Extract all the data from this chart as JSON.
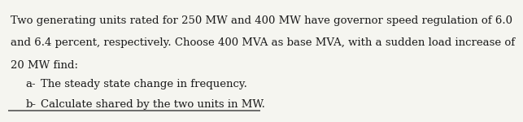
{
  "background_color": "#f5f5f0",
  "text_color": "#1a1a1a",
  "line1": "Two generating units rated for 250 MW and 400 MW have governor speed regulation of 6.0",
  "line2": "and 6.4 percent, respectively. Choose 400 MVA as base MVA, with a sudden load increase of",
  "line3": "20 MW find:",
  "item_a_prefix": "a-",
  "item_a_text": "The steady state change in frequency.",
  "item_b_prefix": "b-",
  "item_b_text": "Calculate shared by the two units in MW.",
  "font_size": 9.5,
  "font_family": "serif",
  "bottom_line_color": "#555555"
}
